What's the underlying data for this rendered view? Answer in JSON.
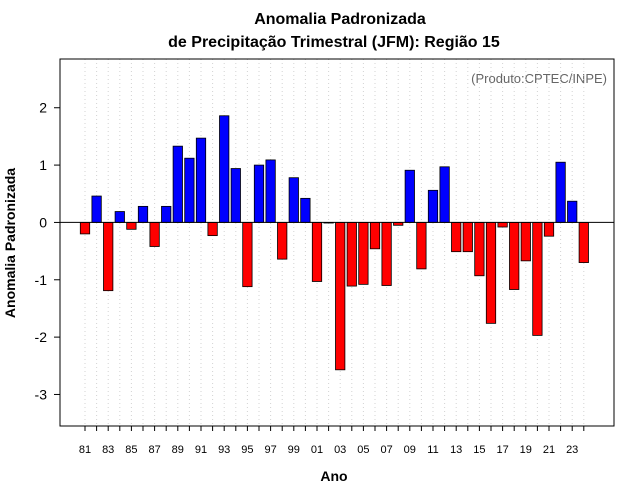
{
  "chart_data": {
    "type": "bar",
    "title": "Anomalia Padronizada",
    "subtitle": "de Precipitação Trimestral (JFM): Região 15",
    "xlabel": "Ano",
    "ylabel": "Anomalia Padronizada",
    "credit": "(Produto:CPTEC/INPE)",
    "ylim": [
      -3.55,
      2.85
    ],
    "yticks": [
      -3,
      -2,
      -1,
      0,
      1,
      2
    ],
    "ytick_labels": [
      "-3",
      "-2",
      "-1",
      "0",
      "1",
      "2"
    ],
    "grid": "vertical dotted",
    "years": [
      1981,
      1982,
      1983,
      1984,
      1985,
      1986,
      1987,
      1988,
      1989,
      1990,
      1991,
      1992,
      1993,
      1994,
      1995,
      1996,
      1997,
      1998,
      1999,
      2000,
      2001,
      2002,
      2003,
      2004,
      2005,
      2006,
      2007,
      2008,
      2009,
      2010,
      2011,
      2012,
      2013,
      2014,
      2015,
      2016,
      2017,
      2018,
      2019,
      2020,
      2021,
      2022,
      2023,
      2024
    ],
    "xtick_labels": [
      "81",
      "",
      "83",
      "",
      "85",
      "",
      "87",
      "",
      "89",
      "",
      "91",
      "",
      "93",
      "",
      "95",
      "",
      "97",
      "",
      "99",
      "",
      "01",
      "",
      "03",
      "",
      "05",
      "",
      "07",
      "",
      "09",
      "",
      "11",
      "",
      "13",
      "",
      "15",
      "",
      "17",
      "",
      "19",
      "",
      "21",
      "",
      "23",
      ""
    ],
    "values": [
      -0.2,
      0.46,
      -1.19,
      0.19,
      -0.12,
      0.28,
      -0.42,
      0.28,
      1.33,
      1.12,
      1.47,
      -0.23,
      1.86,
      0.94,
      -1.12,
      1.0,
      1.09,
      -0.64,
      0.78,
      0.42,
      -1.03,
      -0.01,
      -2.57,
      -1.11,
      -1.08,
      -0.46,
      -1.1,
      -0.05,
      0.91,
      -0.81,
      0.56,
      0.97,
      -0.51,
      -0.51,
      -0.93,
      -1.76,
      -0.08,
      -1.17,
      -0.67,
      -1.97,
      -0.24,
      1.05,
      0.37,
      -0.7
    ],
    "colors": {
      "positive": "#0000ff",
      "negative": "#ff0000",
      "border": "#000000",
      "grid": "#d3d3d3"
    }
  }
}
